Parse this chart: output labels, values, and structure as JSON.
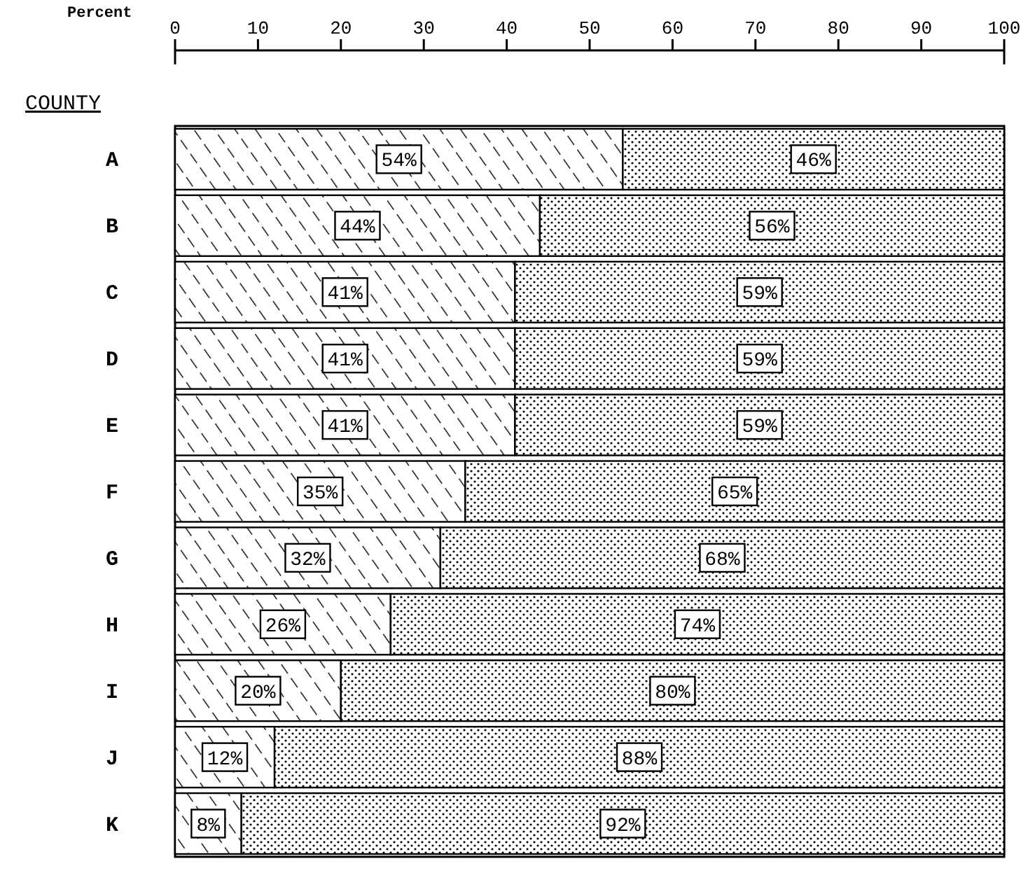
{
  "chart_data": {
    "type": "bar",
    "orientation": "horizontal",
    "stacked": true,
    "xlabel": "Percent",
    "ylabel": "COUNTY",
    "categories": [
      "A",
      "B",
      "C",
      "D",
      "E",
      "F",
      "G",
      "H",
      "I",
      "J",
      "K"
    ],
    "xlim": [
      0,
      100
    ],
    "xticks": [
      0,
      10,
      20,
      30,
      40,
      50,
      60,
      70,
      80,
      90,
      100
    ],
    "grid": false,
    "series": [
      {
        "color": "#000000",
        "values": [
          54,
          44,
          41,
          41,
          41,
          35,
          32,
          26,
          20,
          12,
          8
        ],
        "value_labels": [
          "54%",
          "44%",
          "41%",
          "41%",
          "41%",
          "35%",
          "32%",
          "26%",
          "20%",
          "12%",
          "8%"
        ]
      },
      {
        "color": "#000000",
        "values": [
          46,
          56,
          59,
          59,
          59,
          65,
          68,
          74,
          80,
          88,
          92
        ],
        "value_labels": [
          "46%",
          "56%",
          "59%",
          "59%",
          "59%",
          "65%",
          "68%",
          "74%",
          "80%",
          "88%",
          "92%"
        ]
      }
    ]
  }
}
